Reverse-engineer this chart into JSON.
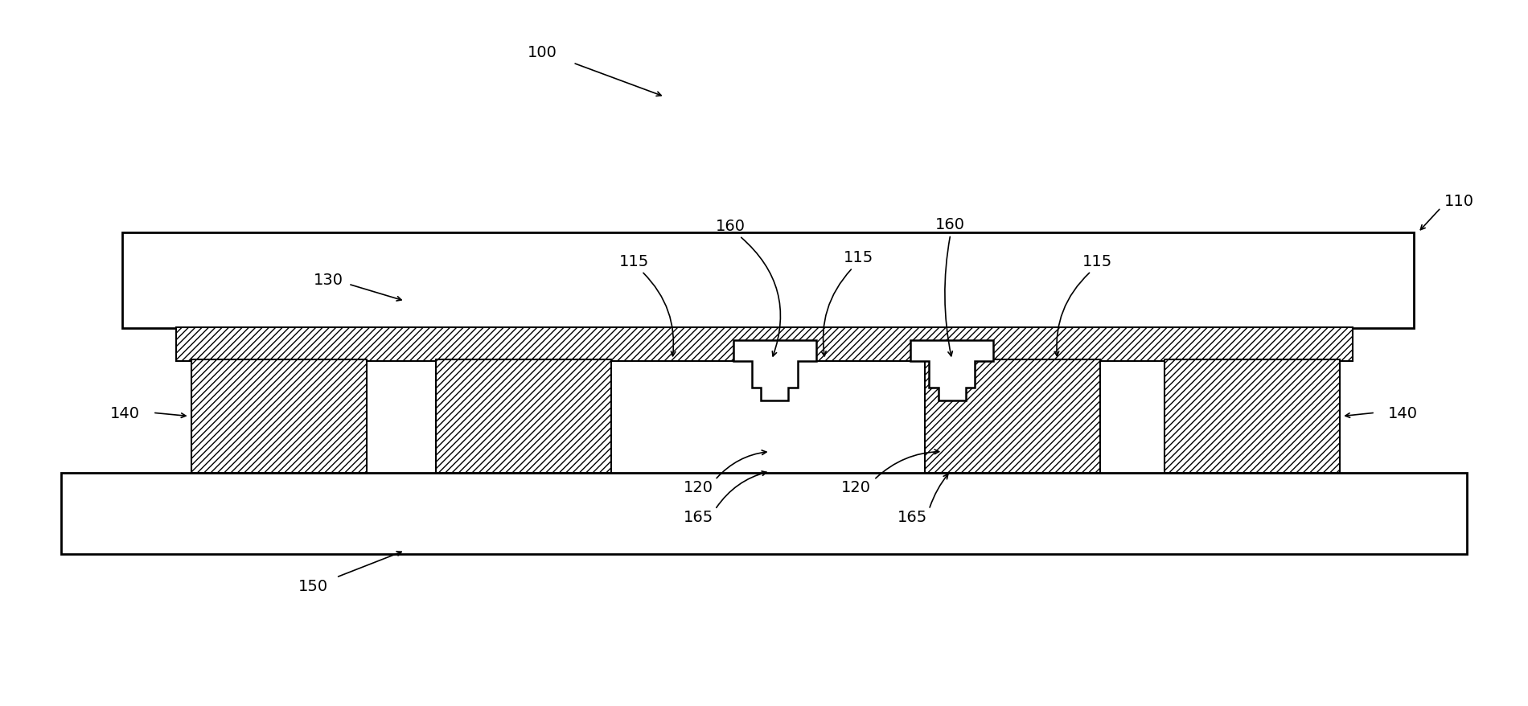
{
  "bg_color": "#ffffff",
  "fig_width": 19.0,
  "fig_height": 8.79,
  "fs": 14
}
